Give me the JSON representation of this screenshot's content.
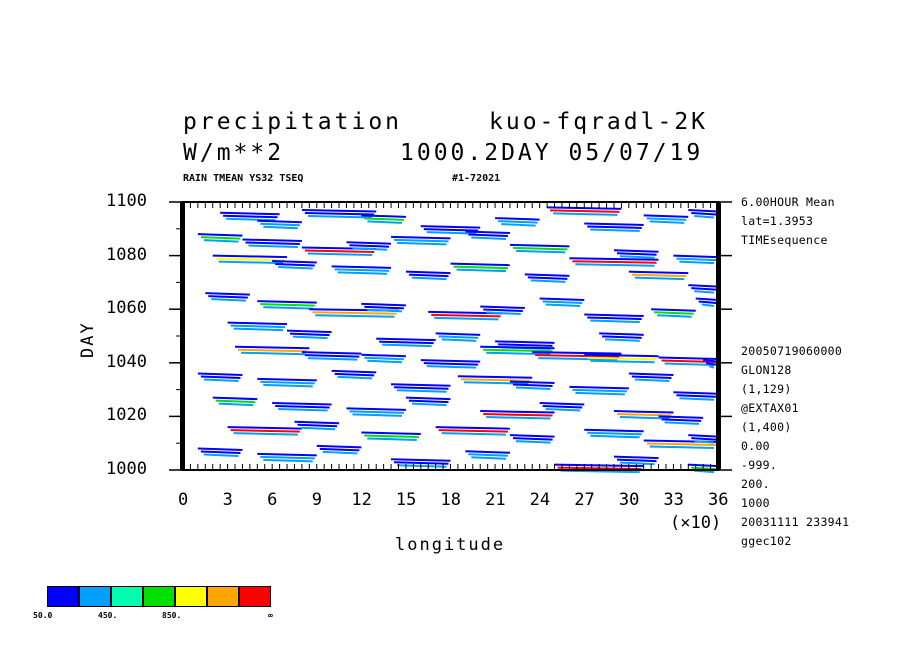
{
  "header": {
    "title_left": "precipitation",
    "title_right": "kuo-fqradl-2K",
    "units": "W/m**2",
    "run_info": "1000.2DAY 05/07/19",
    "var_info": "RAIN TMEAN YS32 TSEQ",
    "record_info": "#1-72021"
  },
  "side_info": {
    "top": [
      "6.00HOUR Mean",
      "lat=1.3953",
      "TIMEsequence"
    ],
    "bottom": [
      "20050719060000",
      "GLON128",
      "(1,129)",
      "@EXTAX01",
      "(1,400)",
      "0.00",
      "-999.",
      "200.",
      "1000",
      "20031111 233941",
      "ggec102"
    ]
  },
  "chart_data": {
    "type": "heatmap",
    "title": "precipitation",
    "xlabel": "longitude",
    "ylabel": "DAY",
    "x_multiplier": "(×10)",
    "xlim": [
      0,
      36
    ],
    "ylim": [
      1000,
      1100
    ],
    "x_ticks": [
      "0",
      "3",
      "6",
      "9",
      "12",
      "15",
      "18",
      "21",
      "24",
      "27",
      "30",
      "33",
      "36"
    ],
    "y_ticks": [
      "1000",
      "1020",
      "1040",
      "1060",
      "1080",
      "1100"
    ],
    "colorbar": {
      "colors": [
        "#0000ff",
        "#00a0ff",
        "#00ffb0",
        "#00e000",
        "#ffff00",
        "#ffa500",
        "#ff0000"
      ],
      "labels": [
        "50.0",
        "450.",
        "850.",
        "∞"
      ]
    },
    "streaks": [
      [
        2.5,
        1096,
        4,
        "#0000ff"
      ],
      [
        5,
        1093,
        3,
        "#00a0ff"
      ],
      [
        8,
        1097,
        5,
        "#0000ff"
      ],
      [
        12,
        1095,
        3,
        "#00e000"
      ],
      [
        16,
        1091,
        4,
        "#0000ff"
      ],
      [
        21,
        1094,
        3,
        "#00a0ff"
      ],
      [
        24.5,
        1098,
        5,
        "#ff0000"
      ],
      [
        27,
        1092,
        4,
        "#0000ff"
      ],
      [
        31,
        1095,
        3,
        "#00a0ff"
      ],
      [
        34,
        1097,
        3,
        "#0000ff"
      ],
      [
        1,
        1088,
        3,
        "#00e000"
      ],
      [
        4,
        1086,
        4,
        "#0000ff"
      ],
      [
        8,
        1083,
        5,
        "#ff0000"
      ],
      [
        11,
        1085,
        3,
        "#0000ff"
      ],
      [
        14,
        1087,
        4,
        "#00a0ff"
      ],
      [
        19,
        1089,
        3,
        "#0000ff"
      ],
      [
        22,
        1084,
        4,
        "#00e000"
      ],
      [
        26,
        1079,
        6,
        "#ff0000"
      ],
      [
        29,
        1082,
        3,
        "#0000ff"
      ],
      [
        33,
        1080,
        4,
        "#00a0ff"
      ],
      [
        2,
        1080,
        5,
        "#ffff00"
      ],
      [
        6,
        1078,
        3,
        "#0000ff"
      ],
      [
        10,
        1076,
        4,
        "#00a0ff"
      ],
      [
        15,
        1074,
        3,
        "#0000ff"
      ],
      [
        18,
        1077,
        4,
        "#00e000"
      ],
      [
        23,
        1073,
        3,
        "#0000ff"
      ],
      [
        30,
        1074,
        4,
        "#ffa500"
      ],
      [
        34,
        1069,
        4,
        "#0000ff"
      ],
      [
        1.5,
        1066,
        3,
        "#0000ff"
      ],
      [
        5,
        1063,
        4,
        "#00e000"
      ],
      [
        8.5,
        1060,
        6,
        "#ffa500"
      ],
      [
        12,
        1062,
        3,
        "#0000ff"
      ],
      [
        16.5,
        1059,
        5,
        "#ff0000"
      ],
      [
        20,
        1061,
        3,
        "#0000ff"
      ],
      [
        24,
        1064,
        3,
        "#00a0ff"
      ],
      [
        27,
        1058,
        4,
        "#0000ff"
      ],
      [
        31.5,
        1060,
        3,
        "#00e000"
      ],
      [
        34.5,
        1064,
        4,
        "#0000ff"
      ],
      [
        3,
        1055,
        4,
        "#00a0ff"
      ],
      [
        7,
        1052,
        3,
        "#0000ff"
      ],
      [
        13,
        1049,
        4,
        "#0000ff"
      ],
      [
        17,
        1051,
        3,
        "#00a0ff"
      ],
      [
        21,
        1048,
        4,
        "#0000ff"
      ],
      [
        28,
        1051,
        3,
        "#0000ff"
      ],
      [
        3.5,
        1046,
        5,
        "#ffa500"
      ],
      [
        8,
        1044,
        4,
        "#0000ff"
      ],
      [
        12,
        1043,
        3,
        "#00a0ff"
      ],
      [
        16,
        1041,
        4,
        "#0000ff"
      ],
      [
        20,
        1046,
        5,
        "#00e000"
      ],
      [
        23.5,
        1044,
        6,
        "#ff0000"
      ],
      [
        27,
        1043,
        5,
        "#ffff00"
      ],
      [
        32,
        1042,
        5,
        "#ff0000"
      ],
      [
        35,
        1041,
        3,
        "#0000ff"
      ],
      [
        1,
        1036,
        3,
        "#0000ff"
      ],
      [
        5,
        1034,
        4,
        "#00a0ff"
      ],
      [
        10,
        1037,
        3,
        "#0000ff"
      ],
      [
        14,
        1032,
        4,
        "#0000ff"
      ],
      [
        18.5,
        1035,
        5,
        "#ffa500"
      ],
      [
        22,
        1033,
        3,
        "#0000ff"
      ],
      [
        26,
        1031,
        4,
        "#00a0ff"
      ],
      [
        30,
        1036,
        3,
        "#0000ff"
      ],
      [
        33,
        1029,
        4,
        "#0000ff"
      ],
      [
        2,
        1027,
        3,
        "#00e000"
      ],
      [
        6,
        1025,
        4,
        "#0000ff"
      ],
      [
        11,
        1023,
        4,
        "#00a0ff"
      ],
      [
        15,
        1027,
        3,
        "#0000ff"
      ],
      [
        20,
        1022,
        5,
        "#ff0000"
      ],
      [
        24,
        1025,
        3,
        "#0000ff"
      ],
      [
        29,
        1022,
        4,
        "#ffa500"
      ],
      [
        32,
        1020,
        3,
        "#0000ff"
      ],
      [
        3,
        1016,
        5,
        "#ff0000"
      ],
      [
        7.5,
        1018,
        3,
        "#0000ff"
      ],
      [
        12,
        1014,
        4,
        "#00e000"
      ],
      [
        17,
        1016,
        5,
        "#ff0000"
      ],
      [
        22,
        1013,
        3,
        "#0000ff"
      ],
      [
        27,
        1015,
        4,
        "#00a0ff"
      ],
      [
        31,
        1011,
        5,
        "#ffa500"
      ],
      [
        34,
        1013,
        3,
        "#0000ff"
      ],
      [
        1,
        1008,
        3,
        "#0000ff"
      ],
      [
        5,
        1006,
        4,
        "#00a0ff"
      ],
      [
        9,
        1009,
        3,
        "#0000ff"
      ],
      [
        14,
        1004,
        4,
        "#0000ff"
      ],
      [
        19,
        1007,
        3,
        "#00a0ff"
      ],
      [
        25,
        1002,
        6,
        "#ff0000"
      ],
      [
        29,
        1005,
        3,
        "#0000ff"
      ],
      [
        34,
        1002,
        4,
        "#00e000"
      ]
    ]
  }
}
